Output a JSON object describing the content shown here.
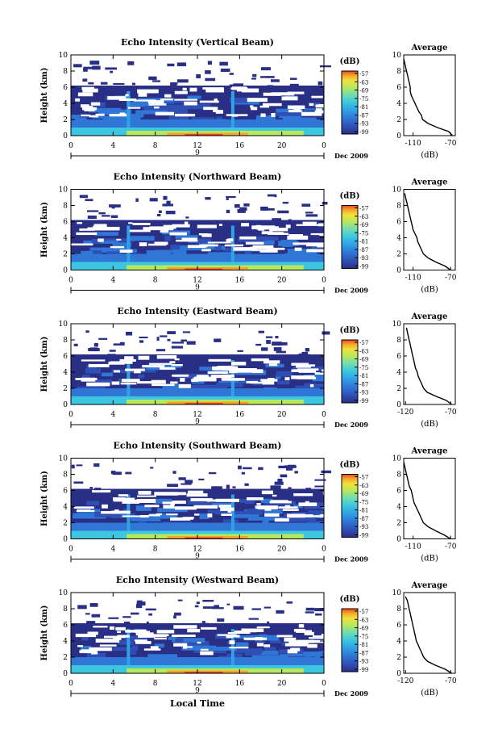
{
  "colors": {
    "colorbar": [
      "#2a2f86",
      "#2f4fb4",
      "#2f76d6",
      "#2fa2e6",
      "#3cc6e0",
      "#6fdcb2",
      "#b8e85c",
      "#f0e23c",
      "#f7a52a",
      "#e8461e"
    ],
    "background_echo": "#2e3a8c",
    "line": "#000000"
  },
  "chart_data": [
    {
      "type": "heatmap",
      "title": "Echo Intensity (Vertical Beam)",
      "ylabel": "Height (km)",
      "yticks": [
        "0",
        "2",
        "4",
        "6",
        "8",
        "10"
      ],
      "xticks": [
        "0",
        "4",
        "8",
        "12",
        "16",
        "20",
        "0"
      ],
      "xaxis_marker": "9",
      "date_label": "Dec 2009",
      "colorbar": {
        "label": "(dB)",
        "ticks": [
          "-57",
          "-63",
          "-69",
          "-75",
          "-81",
          "-87",
          "-93",
          "-99"
        ]
      },
      "ylim": [
        0,
        10
      ],
      "xlim": [
        0,
        24
      ],
      "profile": {
        "title": "Average",
        "xlabel": "(dB)",
        "xticks": [
          "-110",
          "-70"
        ],
        "xlim": [
          -120,
          -65
        ],
        "height": [
          0,
          0.5,
          1,
          1.5,
          2,
          2.5,
          3,
          3.5,
          4,
          4.5,
          5,
          5.5,
          6,
          6.5,
          7,
          7.5,
          8,
          8.5,
          9,
          9.5
        ],
        "db": [
          -68,
          -72,
          -84,
          -94,
          -100,
          -101,
          -104,
          -106,
          -108,
          -110,
          -112,
          -113,
          -113,
          -114,
          -115,
          -116,
          -117,
          -118,
          -119,
          -120
        ]
      }
    },
    {
      "type": "heatmap",
      "title": "Echo Intensity (Northward Beam)",
      "ylabel": "Height (km)",
      "yticks": [
        "0",
        "2",
        "4",
        "6",
        "8",
        "10"
      ],
      "xticks": [
        "0",
        "4",
        "8",
        "12",
        "16",
        "20",
        "0"
      ],
      "xaxis_marker": "9",
      "date_label": "Dec 2009",
      "colorbar": {
        "label": "(dB)",
        "ticks": [
          "-57",
          "-63",
          "-69",
          "-75",
          "-81",
          "-87",
          "-93",
          "-99"
        ]
      },
      "ylim": [
        0,
        10
      ],
      "xlim": [
        0,
        24
      ],
      "profile": {
        "title": "Average",
        "xlabel": "(dB)",
        "xticks": [
          "-110",
          "-70"
        ],
        "xlim": [
          -120,
          -65
        ],
        "height": [
          0,
          0.5,
          1,
          1.5,
          2,
          2.5,
          3,
          3.5,
          4,
          4.5,
          5,
          5.5,
          6,
          6.5,
          7,
          7.5,
          8,
          8.5,
          9,
          9.5
        ],
        "db": [
          -70,
          -76,
          -86,
          -94,
          -99,
          -101,
          -103,
          -105,
          -106,
          -108,
          -110,
          -111,
          -112,
          -113,
          -114,
          -115,
          -116,
          -117,
          -118,
          -119
        ]
      }
    },
    {
      "type": "heatmap",
      "title": "Echo Intensity (Eastward Beam)",
      "ylabel": "Height (km)",
      "yticks": [
        "0",
        "2",
        "4",
        "6",
        "8",
        "10"
      ],
      "xticks": [
        "0",
        "4",
        "8",
        "12",
        "16",
        "20",
        "0"
      ],
      "xaxis_marker": "9",
      "date_label": "Dec 2009",
      "colorbar": {
        "label": "(dB)",
        "ticks": [
          "-57",
          "-63",
          "-69",
          "-75",
          "-81",
          "-87",
          "-93",
          "-99"
        ]
      },
      "ylim": [
        0,
        10
      ],
      "xlim": [
        0,
        24
      ],
      "profile": {
        "title": "Average",
        "xlabel": "(dB)",
        "xticks": [
          "-120",
          "-70"
        ],
        "xlim": [
          -122,
          -65
        ],
        "height": [
          0,
          0.5,
          1,
          1.5,
          2,
          2.5,
          3,
          3.5,
          4,
          4.5,
          5,
          5.5,
          6,
          6.5,
          7,
          7.5,
          8,
          8.5,
          9,
          9.5
        ],
        "db": [
          -69,
          -75,
          -86,
          -96,
          -100,
          -102,
          -104,
          -106,
          -107,
          -109,
          -110,
          -111,
          -112,
          -113,
          -114,
          -115,
          -116,
          -117,
          -118,
          -119
        ]
      }
    },
    {
      "type": "heatmap",
      "title": "Echo Intensity (Southward Beam)",
      "ylabel": "Height (km)",
      "yticks": [
        "0",
        "2",
        "4",
        "6",
        "8",
        "10"
      ],
      "xticks": [
        "0",
        "4",
        "8",
        "12",
        "16",
        "20",
        "0"
      ],
      "xaxis_marker": "9",
      "date_label": "Dec 2009",
      "colorbar": {
        "label": "(dB)",
        "ticks": [
          "-57",
          "-63",
          "-69",
          "-75",
          "-81",
          "-87",
          "-93",
          "-99"
        ]
      },
      "ylim": [
        0,
        10
      ],
      "xlim": [
        0,
        24
      ],
      "profile": {
        "title": "Average",
        "xlabel": "(dB)",
        "xticks": [
          "-110",
          "-70"
        ],
        "xlim": [
          -120,
          -65
        ],
        "height": [
          0,
          0.5,
          1,
          1.5,
          2,
          2.5,
          3,
          3.5,
          4,
          4.5,
          5,
          5.5,
          6,
          6.5,
          7,
          7.5,
          8,
          8.5,
          9,
          9.5
        ],
        "db": [
          -70,
          -77,
          -86,
          -94,
          -99,
          -101,
          -103,
          -105,
          -107,
          -109,
          -110,
          -111,
          -112,
          -114,
          -115,
          -116,
          -117,
          -118,
          -119,
          -120
        ]
      }
    },
    {
      "type": "heatmap",
      "title": "Echo Intensity (Westward Beam)",
      "ylabel": "Height (km)",
      "yticks": [
        "0",
        "2",
        "4",
        "6",
        "8",
        "10"
      ],
      "xticks": [
        "0",
        "4",
        "8",
        "12",
        "16",
        "20",
        "0"
      ],
      "xaxis_marker": "9",
      "date_label": "Dec 2009",
      "xlabel": "Local Time",
      "colorbar": {
        "label": "(dB)",
        "ticks": [
          "-57",
          "-63",
          "-69",
          "-75",
          "-81",
          "-87",
          "-93",
          "-99"
        ]
      },
      "ylim": [
        0,
        10
      ],
      "xlim": [
        0,
        24
      ],
      "profile": {
        "title": "Average",
        "xlabel": "(dB)",
        "xticks": [
          "-120",
          "-70"
        ],
        "xlim": [
          -122,
          -65
        ],
        "height": [
          0,
          0.5,
          1,
          1.5,
          2,
          2.5,
          3,
          3.5,
          4,
          4.5,
          5,
          5.5,
          6,
          6.5,
          7,
          7.5,
          8,
          8.5,
          9,
          9.5
        ],
        "db": [
          -69,
          -76,
          -87,
          -96,
          -100,
          -102,
          -104,
          -106,
          -108,
          -109,
          -110,
          -111,
          -112,
          -113,
          -114,
          -115,
          -116,
          -117,
          -118,
          -120
        ]
      }
    }
  ]
}
